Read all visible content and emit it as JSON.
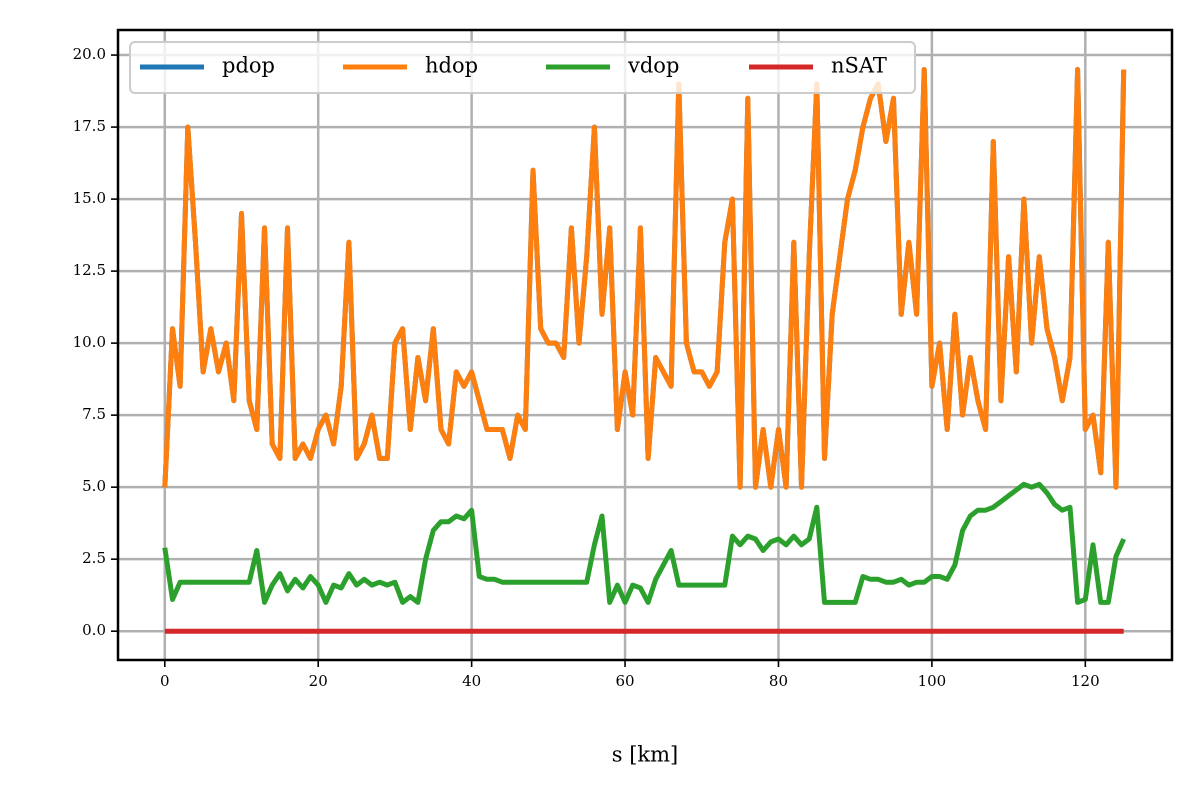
{
  "chart_data": {
    "type": "line",
    "x_label": "s [km]",
    "x": [
      0,
      1,
      2,
      3,
      4,
      5,
      6,
      7,
      8,
      9,
      10,
      11,
      12,
      13,
      14,
      15,
      16,
      17,
      18,
      19,
      20,
      21,
      22,
      23,
      24,
      25,
      26,
      27,
      28,
      29,
      30,
      31,
      32,
      33,
      34,
      35,
      36,
      37,
      38,
      39,
      40,
      41,
      42,
      43,
      44,
      45,
      46,
      47,
      48,
      49,
      50,
      51,
      52,
      53,
      54,
      55,
      56,
      57,
      58,
      59,
      60,
      61,
      62,
      63,
      64,
      65,
      66,
      67,
      68,
      69,
      70,
      71,
      72,
      73,
      74,
      75,
      76,
      77,
      78,
      79,
      80,
      81,
      82,
      83,
      84,
      85,
      86,
      87,
      88,
      89,
      90,
      91,
      92,
      93,
      94,
      95,
      96,
      97,
      98,
      99,
      100,
      101,
      102,
      103,
      104,
      105,
      106,
      107,
      108,
      109,
      110,
      111,
      112,
      113,
      114,
      115,
      116,
      117,
      118,
      119,
      120,
      121,
      122,
      123,
      124,
      125
    ],
    "series": [
      {
        "name": "pdop",
        "color": "#1f77b4",
        "values": [
          5,
          10.5,
          8.5,
          17.5,
          13.5,
          9,
          10.5,
          9,
          10,
          8,
          14.5,
          8,
          7,
          14,
          6.5,
          6,
          14,
          6,
          6.5,
          6,
          7,
          7.5,
          6.5,
          8.5,
          13.5,
          6,
          6.5,
          7.5,
          6,
          6,
          10,
          10.5,
          7,
          9.5,
          8,
          10.5,
          7,
          6.5,
          9,
          8.5,
          9,
          8,
          7,
          7,
          7,
          6,
          7.5,
          7,
          16,
          10.5,
          10,
          10,
          9.5,
          14,
          10,
          13,
          17.5,
          11,
          14,
          7,
          9,
          7.5,
          14,
          6,
          9.5,
          9,
          8.5,
          19,
          10,
          9,
          9,
          8.5,
          9,
          13.5,
          15,
          5,
          18.5,
          5,
          7,
          5,
          7,
          5,
          13.5,
          5,
          13,
          19,
          6,
          11,
          13,
          15,
          16,
          17.5,
          18.5,
          19,
          17,
          18.5,
          11,
          13.5,
          11,
          19.5,
          8.5,
          10,
          7,
          11,
          7.5,
          9.5,
          8,
          7,
          17,
          8,
          13,
          9,
          15,
          10,
          13,
          10.5,
          9.5,
          8,
          9.5,
          19.5,
          7,
          7.5,
          5.5,
          13.5,
          5,
          19.5
        ]
      },
      {
        "name": "hdop",
        "color": "#ff7f0e",
        "values": [
          5,
          10.5,
          8.5,
          17.5,
          13.5,
          9,
          10.5,
          9,
          10,
          8,
          14.5,
          8,
          7,
          14,
          6.5,
          6,
          14,
          6,
          6.5,
          6,
          7,
          7.5,
          6.5,
          8.5,
          13.5,
          6,
          6.5,
          7.5,
          6,
          6,
          10,
          10.5,
          7,
          9.5,
          8,
          10.5,
          7,
          6.5,
          9,
          8.5,
          9,
          8,
          7,
          7,
          7,
          6,
          7.5,
          7,
          16,
          10.5,
          10,
          10,
          9.5,
          14,
          10,
          13,
          17.5,
          11,
          14,
          7,
          9,
          7.5,
          14,
          6,
          9.5,
          9,
          8.5,
          19,
          10,
          9,
          9,
          8.5,
          9,
          13.5,
          15,
          5,
          18.5,
          5,
          7,
          5,
          7,
          5,
          13.5,
          5,
          13,
          19,
          6,
          11,
          13,
          15,
          16,
          17.5,
          18.5,
          19,
          17,
          18.5,
          11,
          13.5,
          11,
          19.5,
          8.5,
          10,
          7,
          11,
          7.5,
          9.5,
          8,
          7,
          17,
          8,
          13,
          9,
          15,
          10,
          13,
          10.5,
          9.5,
          8,
          9.5,
          19.5,
          7,
          7.5,
          5.5,
          13.5,
          5,
          19.5
        ]
      },
      {
        "name": "vdop",
        "color": "#2ca02c",
        "values": [
          2.9,
          1.1,
          1.7,
          1.7,
          1.7,
          1.7,
          1.7,
          1.7,
          1.7,
          1.7,
          1.7,
          1.7,
          2.8,
          1,
          1.6,
          2,
          1.4,
          1.8,
          1.5,
          1.9,
          1.6,
          1,
          1.6,
          1.5,
          2,
          1.6,
          1.8,
          1.6,
          1.7,
          1.6,
          1.7,
          1,
          1.2,
          1,
          2.5,
          3.5,
          3.8,
          3.8,
          4,
          3.9,
          4.2,
          1.9,
          1.8,
          1.8,
          1.7,
          1.7,
          1.7,
          1.7,
          1.7,
          1.7,
          1.7,
          1.7,
          1.7,
          1.7,
          1.7,
          1.7,
          3,
          4,
          1,
          1.6,
          1,
          1.6,
          1.5,
          1,
          1.8,
          2.3,
          2.8,
          1.6,
          1.6,
          1.6,
          1.6,
          1.6,
          1.6,
          1.6,
          3.3,
          3,
          3.3,
          3.2,
          2.8,
          3.1,
          3.2,
          3,
          3.3,
          3,
          3.2,
          4.3,
          1,
          1,
          1,
          1,
          1,
          1.9,
          1.8,
          1.8,
          1.7,
          1.7,
          1.8,
          1.6,
          1.7,
          1.7,
          1.9,
          1.9,
          1.8,
          2.3,
          3.5,
          4,
          4.2,
          4.2,
          4.3,
          4.5,
          4.7,
          4.9,
          5.1,
          5,
          5.1,
          4.8,
          4.4,
          4.2,
          4.3,
          1,
          1.1,
          3,
          1,
          1,
          2.6,
          3.2
        ]
      },
      {
        "name": "nSAT",
        "color": "#d62728",
        "values": [
          0,
          0,
          0,
          0,
          0,
          0,
          0,
          0,
          0,
          0,
          0,
          0,
          0,
          0,
          0,
          0,
          0,
          0,
          0,
          0,
          0,
          0,
          0,
          0,
          0,
          0,
          0,
          0,
          0,
          0,
          0,
          0,
          0,
          0,
          0,
          0,
          0,
          0,
          0,
          0,
          0,
          0,
          0,
          0,
          0,
          0,
          0,
          0,
          0,
          0,
          0,
          0,
          0,
          0,
          0,
          0,
          0,
          0,
          0,
          0,
          0,
          0,
          0,
          0,
          0,
          0,
          0,
          0,
          0,
          0,
          0,
          0,
          0,
          0,
          0,
          0,
          0,
          0,
          0,
          0,
          0,
          0,
          0,
          0,
          0,
          0,
          0,
          0,
          0,
          0,
          0,
          0,
          0,
          0,
          0,
          0,
          0,
          0,
          0,
          0,
          0,
          0,
          0,
          0,
          0,
          0,
          0,
          0,
          0,
          0,
          0,
          0,
          0,
          0,
          0,
          0,
          0,
          0,
          0,
          0,
          0,
          0,
          0,
          0,
          0,
          0
        ]
      }
    ],
    "xlim": [
      -6.1,
      131.3
    ],
    "ylim": [
      -1.0,
      20.87
    ],
    "xticks": [
      0,
      20,
      40,
      60,
      80,
      100,
      120
    ],
    "yticks": [
      {
        "value": 0,
        "label": "0.0"
      },
      {
        "value": 2.5,
        "label": "2.5"
      },
      {
        "value": 5,
        "label": "5.0"
      },
      {
        "value": 7.5,
        "label": "7.5"
      },
      {
        "value": 10,
        "label": "10.0"
      },
      {
        "value": 12.5,
        "label": "12.5"
      },
      {
        "value": 15,
        "label": "15.0"
      },
      {
        "value": 17.5,
        "label": "17.5"
      },
      {
        "value": 20,
        "label": "20.0"
      }
    ],
    "grid": true,
    "legend": "upper-left"
  }
}
